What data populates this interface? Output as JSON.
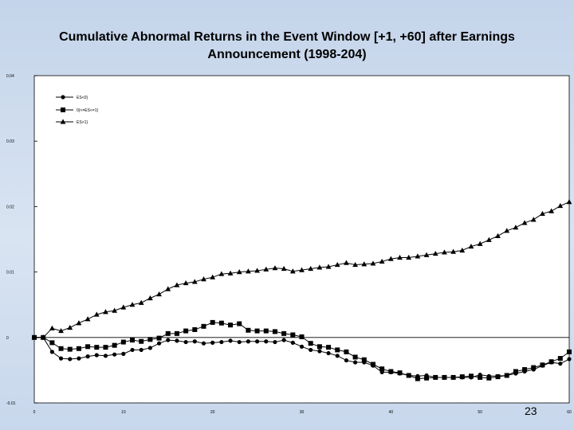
{
  "title_line1": "Cumulative Abnormal Returns in the Event Window [+1, +60] after Earnings",
  "title_line2": "Announcement (1998-204)",
  "page_number": "23",
  "chart_data": {
    "type": "line",
    "title": "Cumulative Abnormal Returns in the Event Window [+1, +60] after Earnings Announcement (1998-204)",
    "xlabel": "",
    "ylabel": "",
    "xlim": [
      0,
      60
    ],
    "ylim": [
      -0.01,
      0.04
    ],
    "x_ticks": [
      0,
      10,
      20,
      30,
      40,
      50,
      60
    ],
    "x_tick_labels": [
      "0",
      "10",
      "20",
      "30",
      "40",
      "50",
      "60"
    ],
    "y_ticks": [
      -0.01,
      0,
      0.01,
      0.02,
      0.03,
      0.04
    ],
    "y_tick_labels": [
      "-0.01",
      "0",
      "0.01",
      "0.02",
      "0.03",
      "0.04"
    ],
    "legend_position": "top-left",
    "colors": {
      "series": "#000000",
      "background": "#ffffff"
    },
    "x": [
      0,
      1,
      2,
      3,
      4,
      5,
      6,
      7,
      8,
      9,
      10,
      11,
      12,
      13,
      14,
      15,
      16,
      17,
      18,
      19,
      20,
      21,
      22,
      23,
      24,
      25,
      26,
      27,
      28,
      29,
      30,
      31,
      32,
      33,
      34,
      35,
      36,
      37,
      38,
      39,
      40,
      41,
      42,
      43,
      44,
      45,
      46,
      47,
      48,
      49,
      50,
      51,
      52,
      53,
      54,
      55,
      56,
      57,
      58,
      59,
      60
    ],
    "series": [
      {
        "name": "ES<0}",
        "marker": "circle",
        "values": [
          0,
          0,
          -0.0022,
          -0.0032,
          -0.0033,
          -0.0032,
          -0.0029,
          -0.0027,
          -0.0028,
          -0.0026,
          -0.0025,
          -0.0019,
          -0.0019,
          -0.0016,
          -0.0009,
          -0.0004,
          -0.0005,
          -0.0007,
          -0.0006,
          -0.0009,
          -0.0008,
          -0.0007,
          -0.0005,
          -0.0007,
          -0.0006,
          -0.0006,
          -0.0006,
          -0.0007,
          -0.0004,
          -0.0008,
          -0.0014,
          -0.0019,
          -0.0021,
          -0.0024,
          -0.0028,
          -0.0035,
          -0.0038,
          -0.0038,
          -0.0043,
          -0.0053,
          -0.0053,
          -0.0055,
          -0.0058,
          -0.0059,
          -0.0058,
          -0.0061,
          -0.0061,
          -0.0061,
          -0.0061,
          -0.0061,
          -0.0057,
          -0.0059,
          -0.0059,
          -0.0058,
          -0.0055,
          -0.0052,
          -0.0049,
          -0.0043,
          -0.0038,
          -0.004,
          -0.0033
        ]
      },
      {
        "name": "0{<=ES<=1}",
        "marker": "square",
        "values": [
          0,
          0,
          -0.0008,
          -0.0017,
          -0.0018,
          -0.0017,
          -0.0014,
          -0.0015,
          -0.0015,
          -0.0012,
          -0.0007,
          -0.0004,
          -0.0006,
          -0.0003,
          -0.0001,
          0.0006,
          0.0006,
          0.001,
          0.0012,
          0.0017,
          0.0023,
          0.0022,
          0.0019,
          0.0021,
          0.0011,
          0.001,
          0.001,
          0.0009,
          0.0006,
          0.0004,
          0.0001,
          -0.0009,
          -0.0014,
          -0.0015,
          -0.0019,
          -0.0022,
          -0.003,
          -0.0034,
          -0.0041,
          -0.0048,
          -0.0052,
          -0.0054,
          -0.0058,
          -0.0063,
          -0.0062,
          -0.0061,
          -0.0061,
          -0.0061,
          -0.006,
          -0.0059,
          -0.0061,
          -0.0062,
          -0.006,
          -0.0058,
          -0.0052,
          -0.0049,
          -0.0046,
          -0.0042,
          -0.0037,
          -0.0032,
          -0.0022
        ]
      },
      {
        "name": "ES>1}",
        "marker": "triangle",
        "values": [
          0,
          0,
          0.0014,
          0.001,
          0.0015,
          0.0022,
          0.0028,
          0.0035,
          0.0039,
          0.0041,
          0.0046,
          0.005,
          0.0053,
          0.006,
          0.0066,
          0.0074,
          0.008,
          0.0083,
          0.0085,
          0.0089,
          0.0092,
          0.0097,
          0.0098,
          0.01,
          0.0101,
          0.0102,
          0.0104,
          0.0106,
          0.0105,
          0.0101,
          0.0103,
          0.0105,
          0.0107,
          0.0108,
          0.0111,
          0.0114,
          0.0111,
          0.0112,
          0.0113,
          0.0116,
          0.012,
          0.0122,
          0.0122,
          0.0124,
          0.0126,
          0.0128,
          0.013,
          0.0131,
          0.0133,
          0.0139,
          0.0143,
          0.0149,
          0.0155,
          0.0163,
          0.0168,
          0.0175,
          0.018,
          0.0189,
          0.0193,
          0.0201,
          0.0207
        ]
      }
    ]
  }
}
